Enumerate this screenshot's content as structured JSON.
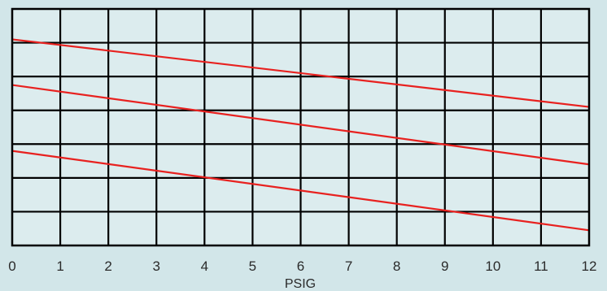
{
  "chart_data": {
    "type": "line",
    "title": "",
    "xlabel": "PSIG",
    "ylabel": "",
    "xlim": [
      0,
      12
    ],
    "ylim": [
      0,
      7
    ],
    "x_ticks": [
      "0",
      "1",
      "2",
      "3",
      "4",
      "5",
      "6",
      "7",
      "8",
      "9",
      "10",
      "11",
      "12"
    ],
    "grid": true,
    "background_color": "#d2e6e9",
    "plot_background_color": "#dcecee",
    "grid_color": "#000000",
    "series": [
      {
        "color": "#e8211f",
        "x": [
          0,
          12
        ],
        "y": [
          6.1,
          4.1
        ]
      },
      {
        "color": "#e8211f",
        "x": [
          0,
          12
        ],
        "y": [
          4.75,
          2.4
        ]
      },
      {
        "color": "#e8211f",
        "x": [
          0,
          12
        ],
        "y": [
          2.8,
          0.45
        ]
      }
    ]
  }
}
